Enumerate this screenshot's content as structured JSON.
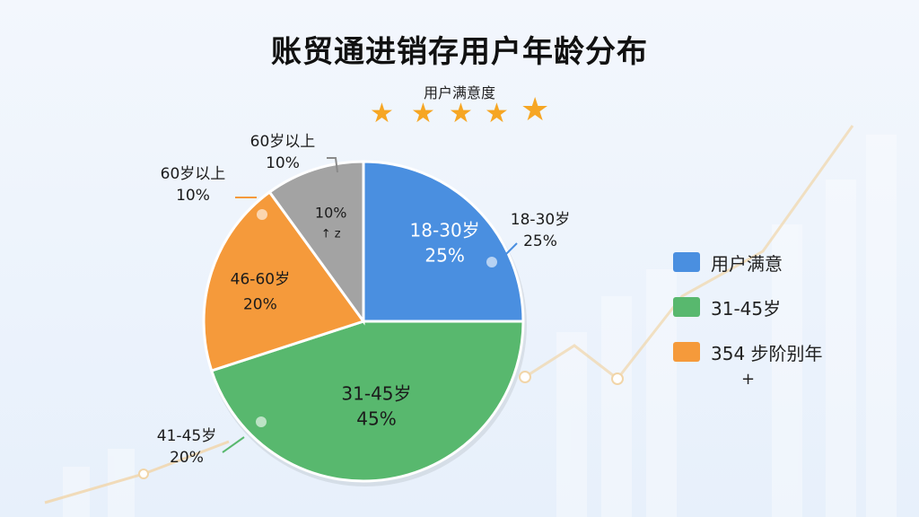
{
  "header": {
    "title": "账贸通进销存用户年龄分布",
    "subtitle": "用户满意度",
    "star_count": 5
  },
  "colors": {
    "blue": "#4a8fe0",
    "green": "#58b86e",
    "orange": "#f59a3b",
    "gray": "#a3a3a3"
  },
  "chart_data": {
    "type": "pie",
    "slices": [
      {
        "label": "18-30岁",
        "value": 25,
        "display": "25%",
        "color": "#4a8fe0"
      },
      {
        "label": "31-45岁",
        "value": 45,
        "display": "45%",
        "color": "#58b86e"
      },
      {
        "label": "46-60岁",
        "value": 20,
        "display": "20%",
        "color": "#f59a3b"
      },
      {
        "label": "10%",
        "value": 10,
        "display": "↑ z",
        "color": "#a3a3a3"
      }
    ],
    "callouts": [
      {
        "line1": "18-30岁",
        "line2": "25%"
      },
      {
        "line1": "41-45岁",
        "line2": "20%"
      },
      {
        "line1": "60岁以上",
        "line2": "10%"
      },
      {
        "line1": "60岁以上",
        "line2": "10%"
      }
    ],
    "legend": [
      {
        "label": "用户满意",
        "color": "#4a8fe0"
      },
      {
        "label": "31-45岁",
        "color": "#58b86e"
      },
      {
        "label": "354 步阶别年",
        "color": "#f59a3b"
      }
    ],
    "legend_extra": "+"
  }
}
